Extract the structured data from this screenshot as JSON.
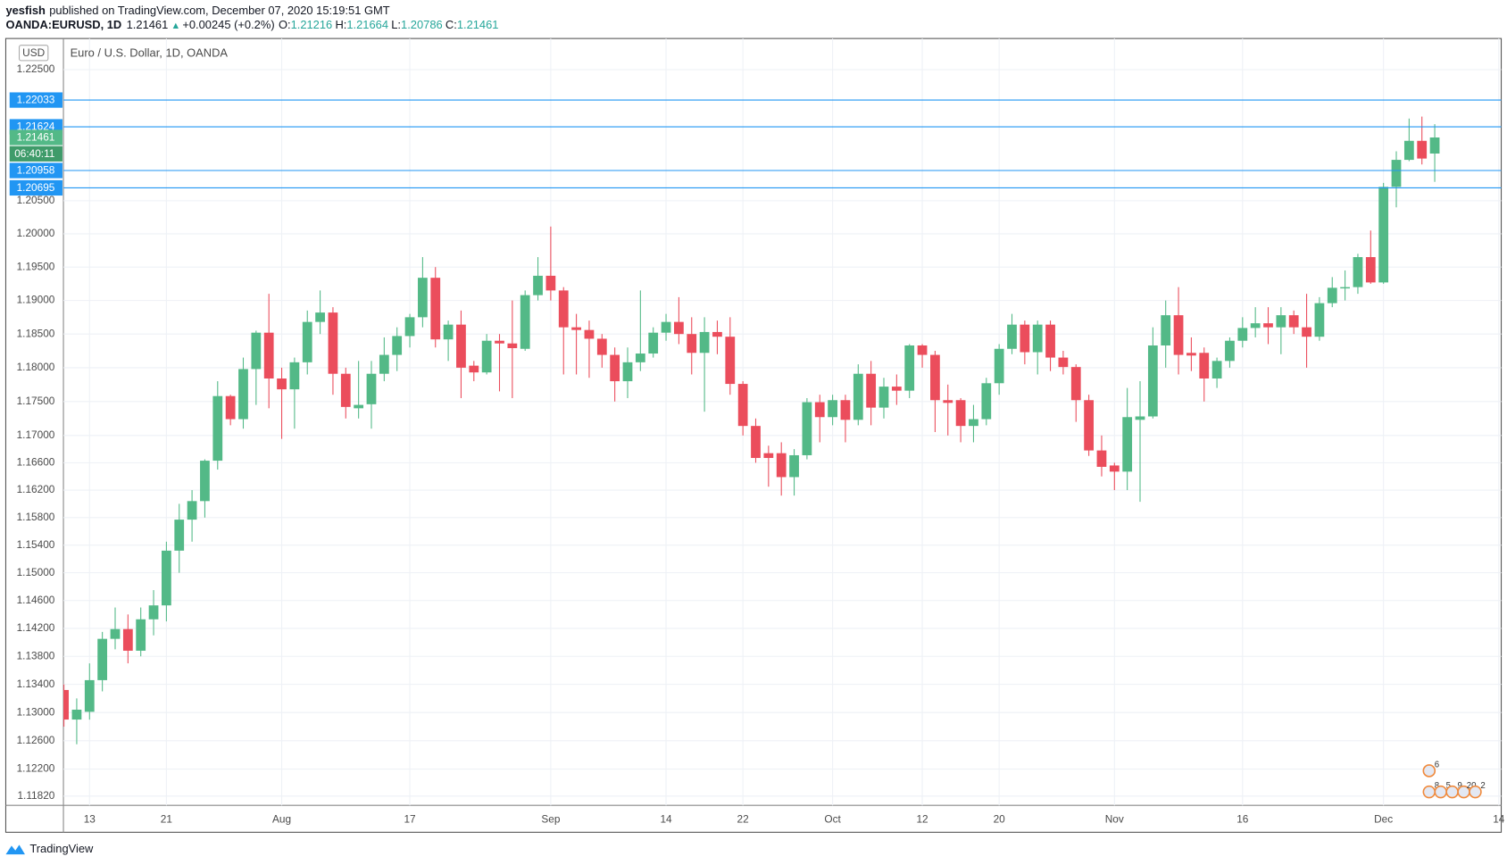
{
  "header": {
    "publisher": "yesfish",
    "published": "published on TradingView.com, December 07, 2020 15:19:51 GMT",
    "symbol": "OANDA:EURUSD, 1D",
    "arrow": "▲",
    "change": "+0.00245 (+0.2%)",
    "o": "O:",
    "h": "H:",
    "l": "L:",
    "c": "C:"
  },
  "footer": {
    "brand": "TradingView"
  },
  "chart_data": {
    "type": "candlestick",
    "title": "Euro / U.S. Dollar, 1D, OANDA",
    "currency": "USD",
    "log_scale": true,
    "grid": true,
    "up_color": "#53b987",
    "down_color": "#eb4d5c",
    "line_color": "#2196f3",
    "countdown": "06:40:11",
    "categories": [
      null,
      null,
      "13",
      null,
      null,
      null,
      null,
      null,
      "21",
      null,
      null,
      null,
      null,
      null,
      null,
      null,
      null,
      "Aug",
      null,
      null,
      null,
      null,
      null,
      null,
      null,
      null,
      null,
      "17",
      null,
      null,
      null,
      null,
      null,
      null,
      null,
      null,
      null,
      null,
      "Sep",
      null,
      null,
      null,
      null,
      null,
      null,
      null,
      null,
      "14",
      null,
      null,
      null,
      null,
      null,
      "22",
      null,
      null,
      null,
      null,
      null,
      null,
      "Oct",
      null,
      null,
      null,
      null,
      null,
      null,
      "12",
      null,
      null,
      null,
      null,
      null,
      "20",
      null,
      null,
      null,
      null,
      null,
      null,
      null,
      null,
      "Nov",
      null,
      null,
      null,
      null,
      null,
      null,
      null,
      null,
      null,
      "16",
      null,
      null,
      null,
      null,
      null,
      null,
      null,
      null,
      null,
      null,
      "Dec",
      null,
      null,
      null,
      null,
      null,
      null,
      null,
      null,
      "14"
    ],
    "open": [
      1.1332,
      1.129,
      1.1301,
      1.1346,
      1.1405,
      1.1419,
      1.1388,
      1.1433,
      1.1453,
      1.1532,
      1.1577,
      1.1604,
      1.1663,
      1.1758,
      1.1724,
      1.1798,
      1.1852,
      1.1784,
      1.1768,
      1.1808,
      1.1868,
      1.1882,
      1.1791,
      1.174,
      1.1746,
      1.1791,
      1.1819,
      1.1847,
      1.1875,
      1.1934,
      1.1842,
      1.1864,
      1.1803,
      1.1793,
      1.184,
      1.1836,
      1.1828,
      1.1908,
      1.1937,
      1.1915,
      1.186,
      1.1856,
      1.1843,
      1.1819,
      1.178,
      1.1808,
      1.1821,
      1.1852,
      1.1868,
      1.185,
      1.1822,
      1.1853,
      1.1846,
      1.1776,
      1.1714,
      1.1674,
      1.1674,
      1.1639,
      1.1671,
      1.1749,
      1.1727,
      1.1752,
      1.1723,
      1.1791,
      1.1741,
      1.1772,
      1.1766,
      1.1833,
      1.1819,
      1.1752,
      1.1752,
      1.1714,
      1.1724,
      1.1777,
      1.1828,
      1.1864,
      1.1823,
      1.1864,
      1.1815,
      1.1801,
      1.1752,
      1.1678,
      1.1656,
      1.1647,
      1.1723,
      1.1728,
      1.1833,
      1.1878,
      1.1822,
      1.1822,
      1.1784,
      1.181,
      1.184,
      1.1859,
      1.1866,
      1.186,
      1.1878,
      1.186,
      1.1846,
      1.1896,
      1.1918,
      1.192,
      1.1965,
      1.1927,
      1.2071,
      1.2112,
      1.2141,
      1.21216,
      null,
      null,
      null,
      null,
      null
    ],
    "high": [
      1.134,
      1.132,
      1.137,
      1.1415,
      1.145,
      1.144,
      1.145,
      1.1475,
      1.1545,
      1.16,
      1.162,
      1.1665,
      1.178,
      1.176,
      1.1815,
      1.1855,
      1.191,
      1.18,
      1.1815,
      1.1885,
      1.1915,
      1.189,
      1.18,
      1.181,
      1.181,
      1.1845,
      1.186,
      1.188,
      1.1965,
      1.195,
      1.187,
      1.1885,
      1.181,
      1.185,
      1.185,
      1.19,
      1.1915,
      1.1965,
      1.2011,
      1.192,
      1.188,
      1.187,
      1.185,
      1.183,
      1.183,
      1.1915,
      1.186,
      1.188,
      1.1905,
      1.1875,
      1.1875,
      1.187,
      1.1875,
      1.178,
      1.1725,
      1.1685,
      1.169,
      1.168,
      1.1755,
      1.176,
      1.176,
      1.176,
      1.1805,
      1.181,
      1.1785,
      1.179,
      1.1835,
      1.1835,
      1.1825,
      1.1775,
      1.1755,
      1.1745,
      1.1785,
      1.1835,
      1.188,
      1.187,
      1.187,
      1.187,
      1.1825,
      1.1805,
      1.176,
      1.17,
      1.166,
      1.177,
      1.178,
      1.186,
      1.19,
      1.192,
      1.1845,
      1.183,
      1.1815,
      1.1845,
      1.1875,
      1.189,
      1.189,
      1.189,
      1.1885,
      1.191,
      1.1905,
      1.1935,
      1.1945,
      1.197,
      1.2005,
      1.2077,
      1.2125,
      1.2175,
      1.2178,
      1.21664,
      null,
      null,
      null,
      null,
      null
    ],
    "low": [
      1.128,
      1.1255,
      1.129,
      1.133,
      1.139,
      1.137,
      1.138,
      1.141,
      1.143,
      1.15,
      1.1545,
      1.158,
      1.165,
      1.1715,
      1.171,
      1.1745,
      1.174,
      1.1695,
      1.171,
      1.179,
      1.185,
      1.176,
      1.1725,
      1.1725,
      1.171,
      1.178,
      1.1795,
      1.183,
      1.186,
      1.183,
      1.181,
      1.1755,
      1.178,
      1.179,
      1.1765,
      1.1755,
      1.1825,
      1.19,
      1.19,
      1.179,
      1.179,
      1.1785,
      1.18,
      1.175,
      1.1755,
      1.1795,
      1.1815,
      1.184,
      1.1835,
      1.179,
      1.1735,
      1.182,
      1.176,
      1.17,
      1.166,
      1.1625,
      1.1612,
      1.1612,
      1.1665,
      1.169,
      1.1715,
      1.169,
      1.1715,
      1.1715,
      1.1725,
      1.1745,
      1.1755,
      1.18,
      1.1705,
      1.17,
      1.169,
      1.169,
      1.1715,
      1.176,
      1.182,
      1.1805,
      1.179,
      1.1795,
      1.179,
      1.172,
      1.167,
      1.164,
      1.162,
      1.162,
      1.1603,
      1.1725,
      1.18,
      1.179,
      1.1795,
      1.175,
      1.177,
      1.18,
      1.183,
      1.1845,
      1.1835,
      1.182,
      1.185,
      1.18,
      1.184,
      1.189,
      1.19,
      1.191,
      1.1925,
      1.1925,
      1.204,
      1.211,
      1.2105,
      1.20786,
      null,
      null,
      null,
      null,
      null
    ],
    "close": [
      1.129,
      1.1304,
      1.1346,
      1.1405,
      1.1419,
      1.1388,
      1.1433,
      1.1453,
      1.1532,
      1.1577,
      1.1604,
      1.1663,
      1.1758,
      1.1724,
      1.1798,
      1.1852,
      1.1784,
      1.1768,
      1.1808,
      1.1868,
      1.1882,
      1.1791,
      1.1742,
      1.1745,
      1.1791,
      1.1819,
      1.1847,
      1.1875,
      1.1934,
      1.1842,
      1.1864,
      1.18,
      1.1793,
      1.184,
      1.1836,
      1.1829,
      1.1908,
      1.1937,
      1.1915,
      1.186,
      1.1856,
      1.1843,
      1.1819,
      1.178,
      1.1808,
      1.1821,
      1.1852,
      1.1868,
      1.185,
      1.1822,
      1.1853,
      1.1846,
      1.1776,
      1.1714,
      1.1667,
      1.1667,
      1.1639,
      1.1671,
      1.1749,
      1.1727,
      1.1752,
      1.1723,
      1.1791,
      1.1741,
      1.1772,
      1.1766,
      1.1833,
      1.1819,
      1.1752,
      1.1748,
      1.1714,
      1.1724,
      1.1777,
      1.1828,
      1.1864,
      1.1823,
      1.1864,
      1.1815,
      1.1801,
      1.1752,
      1.1678,
      1.1654,
      1.1647,
      1.1727,
      1.1728,
      1.1833,
      1.1878,
      1.1819,
      1.1818,
      1.1784,
      1.181,
      1.184,
      1.1859,
      1.1866,
      1.186,
      1.1878,
      1.186,
      1.1846,
      1.1896,
      1.1919,
      1.192,
      1.1965,
      1.1927,
      1.2071,
      1.2112,
      1.2141,
      1.2114,
      1.21461,
      null,
      null,
      null,
      null,
      null
    ],
    "price_lines": [
      1.22033,
      1.21624,
      1.20958,
      1.20695
    ],
    "ylim": [
      1.1169,
      1.2298
    ],
    "yticks": [
      {
        "value": 1.225,
        "label": "1.22500"
      },
      {
        "value": 1.205,
        "label": "1.20500"
      },
      {
        "value": 1.2,
        "label": "1.20000"
      },
      {
        "value": 1.195,
        "label": "1.19500"
      },
      {
        "value": 1.19,
        "label": "1.19000"
      },
      {
        "value": 1.185,
        "label": "1.18500"
      },
      {
        "value": 1.18,
        "label": "1.18000"
      },
      {
        "value": 1.175,
        "label": "1.17500"
      },
      {
        "value": 1.17,
        "label": "1.17000"
      },
      {
        "value": 1.166,
        "label": "1.16600"
      },
      {
        "value": 1.162,
        "label": "1.16200"
      },
      {
        "value": 1.158,
        "label": "1.15800"
      },
      {
        "value": 1.154,
        "label": "1.15400"
      },
      {
        "value": 1.15,
        "label": "1.15000"
      },
      {
        "value": 1.146,
        "label": "1.14600"
      },
      {
        "value": 1.142,
        "label": "1.14200"
      },
      {
        "value": 1.138,
        "label": "1.13800"
      },
      {
        "value": 1.134,
        "label": "1.13400"
      },
      {
        "value": 1.13,
        "label": "1.13000"
      },
      {
        "value": 1.126,
        "label": "1.12600"
      },
      {
        "value": 1.122,
        "label": "1.12200"
      },
      {
        "value": 1.1182,
        "label": "1.11820"
      }
    ],
    "events": {
      "upper": [
        "6"
      ],
      "lower": [
        "8",
        "5",
        "9",
        "20",
        "2"
      ]
    }
  }
}
